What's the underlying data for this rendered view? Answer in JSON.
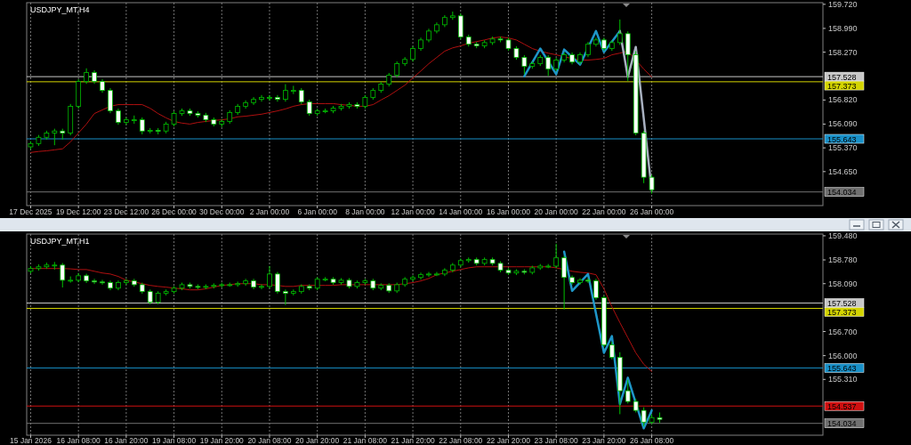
{
  "chart_data": [
    {
      "type": "candlestick",
      "title": "USDJPY_MT,H4",
      "color": "#00c000",
      "grid": "x",
      "categories": [
        "17 Dec 2025",
        null,
        null,
        null,
        null,
        null,
        "19 Dec 12:00",
        null,
        null,
        null,
        null,
        null,
        "23 Dec 12:00",
        null,
        null,
        null,
        null,
        null,
        "26 Dec 00:00",
        null,
        null,
        null,
        null,
        null,
        "30 Dec 00:00",
        null,
        null,
        null,
        null,
        null,
        "2 Jan 00:00",
        null,
        null,
        null,
        null,
        null,
        "6 Jan 00:00",
        null,
        null,
        null,
        null,
        null,
        "8 Jan 00:00",
        null,
        null,
        null,
        null,
        null,
        "12 Jan 00:00",
        null,
        null,
        null,
        null,
        null,
        "14 Jan 00:00",
        null,
        null,
        null,
        null,
        null,
        "16 Jan 00:00",
        null,
        null,
        null,
        null,
        null,
        "20 Jan 00:00",
        null,
        null,
        null,
        null,
        null,
        "22 Jan 00:00",
        null,
        null,
        null,
        null,
        null,
        "26 Jan 00:00",
        null,
        null,
        null,
        null,
        null,
        null,
        null,
        null,
        null,
        null,
        null,
        null,
        null,
        null,
        null,
        null,
        null,
        null,
        null,
        null,
        null
      ],
      "ohlc": [
        [
          155.4,
          155.57,
          155.33,
          155.5
        ],
        [
          155.5,
          155.76,
          155.43,
          155.69
        ],
        [
          155.69,
          155.89,
          155.62,
          155.82
        ],
        [
          155.82,
          155.95,
          155.45,
          155.88
        ],
        [
          155.88,
          155.95,
          155.62,
          155.82
        ],
        [
          155.82,
          156.7,
          155.75,
          156.63
        ],
        [
          156.63,
          157.45,
          156.56,
          157.38
        ],
        [
          157.38,
          157.78,
          157.31,
          157.65
        ],
        [
          157.65,
          157.72,
          157.31,
          157.38
        ],
        [
          157.38,
          157.45,
          157.04,
          157.11
        ],
        [
          157.11,
          157.18,
          156.42,
          156.49
        ],
        [
          156.49,
          156.56,
          156.07,
          156.14
        ],
        [
          156.14,
          156.29,
          156.07,
          156.22
        ],
        [
          156.22,
          156.35,
          156.1,
          156.22
        ],
        [
          156.22,
          156.29,
          155.78,
          155.88
        ],
        [
          155.88,
          155.97,
          155.81,
          155.9
        ],
        [
          155.9,
          155.97,
          155.78,
          155.88
        ],
        [
          155.88,
          156.16,
          155.81,
          156.09
        ],
        [
          156.09,
          156.48,
          156.02,
          156.41
        ],
        [
          156.41,
          156.56,
          156.34,
          156.49
        ],
        [
          156.49,
          156.56,
          156.34,
          156.41
        ],
        [
          156.41,
          156.48,
          156.29,
          156.36
        ],
        [
          156.36,
          156.43,
          156.15,
          156.22
        ],
        [
          156.22,
          156.29,
          156.02,
          156.09
        ],
        [
          156.09,
          156.24,
          156.0,
          156.17
        ],
        [
          156.17,
          156.51,
          156.1,
          156.44
        ],
        [
          156.44,
          156.7,
          156.37,
          156.63
        ],
        [
          156.63,
          156.81,
          156.56,
          156.74
        ],
        [
          156.74,
          156.91,
          156.67,
          156.84
        ],
        [
          156.84,
          156.97,
          156.77,
          156.9
        ],
        [
          156.9,
          156.97,
          156.8,
          156.9
        ],
        [
          156.9,
          156.97,
          156.77,
          156.84
        ],
        [
          156.84,
          157.3,
          156.77,
          157.11
        ],
        [
          157.11,
          157.25,
          157.0,
          157.11
        ],
        [
          157.11,
          157.18,
          156.69,
          156.76
        ],
        [
          156.76,
          156.83,
          156.34,
          156.41
        ],
        [
          156.41,
          156.56,
          156.34,
          156.49
        ],
        [
          156.49,
          156.56,
          156.42,
          156.49
        ],
        [
          156.49,
          156.64,
          156.42,
          156.57
        ],
        [
          156.57,
          156.7,
          156.5,
          156.63
        ],
        [
          156.63,
          156.75,
          156.56,
          156.68
        ],
        [
          156.68,
          156.75,
          156.56,
          156.63
        ],
        [
          156.63,
          156.97,
          156.56,
          156.9
        ],
        [
          156.9,
          157.18,
          156.83,
          157.11
        ],
        [
          157.11,
          157.37,
          157.04,
          157.3
        ],
        [
          157.3,
          157.64,
          157.23,
          157.57
        ],
        [
          157.57,
          157.99,
          157.5,
          157.92
        ],
        [
          157.92,
          158.12,
          157.85,
          158.05
        ],
        [
          158.05,
          158.45,
          157.98,
          158.38
        ],
        [
          158.38,
          158.71,
          158.31,
          158.64
        ],
        [
          158.64,
          158.98,
          158.57,
          158.91
        ],
        [
          158.91,
          159.17,
          158.84,
          159.1
        ],
        [
          159.1,
          159.39,
          159.03,
          159.32
        ],
        [
          159.32,
          159.5,
          159.25,
          159.37
        ],
        [
          159.37,
          159.44,
          158.66,
          158.73
        ],
        [
          158.73,
          158.8,
          158.44,
          158.51
        ],
        [
          158.51,
          158.58,
          158.39,
          158.46
        ],
        [
          158.46,
          158.63,
          158.39,
          158.56
        ],
        [
          158.56,
          158.74,
          158.49,
          158.67
        ],
        [
          158.67,
          158.74,
          158.57,
          158.64
        ],
        [
          158.64,
          158.71,
          158.31,
          158.38
        ],
        [
          158.38,
          158.45,
          158.04,
          158.11
        ],
        [
          158.11,
          158.18,
          157.6,
          157.84
        ],
        [
          157.84,
          157.99,
          157.77,
          157.92
        ],
        [
          157.92,
          158.18,
          157.85,
          158.11
        ],
        [
          158.11,
          158.18,
          157.55,
          157.76
        ],
        [
          157.76,
          158.1,
          157.69,
          158.03
        ],
        [
          158.03,
          158.26,
          157.96,
          158.19
        ],
        [
          158.19,
          158.26,
          157.9,
          157.97
        ],
        [
          157.97,
          158.26,
          157.9,
          158.19
        ],
        [
          158.19,
          158.58,
          158.12,
          158.51
        ],
        [
          158.51,
          158.71,
          158.44,
          158.64
        ],
        [
          158.64,
          158.71,
          158.31,
          158.38
        ],
        [
          158.38,
          158.63,
          158.31,
          158.56
        ],
        [
          158.56,
          159.26,
          158.49,
          158.83
        ],
        [
          158.83,
          158.9,
          157.4,
          158.19
        ],
        [
          158.19,
          158.3,
          155.75,
          155.82
        ],
        [
          155.82,
          155.89,
          154.3,
          154.48
        ],
        [
          154.48,
          154.55,
          153.98,
          154.1
        ],
        null,
        null,
        null,
        null,
        null,
        null,
        null,
        null,
        null,
        null,
        null,
        null,
        null,
        null,
        null,
        null,
        null,
        null,
        null,
        null,
        null
      ],
      "series": [
        {
          "type": "line",
          "color": "#b01010",
          "values": [
            155.23,
            155.26,
            155.28,
            155.31,
            155.34,
            155.55,
            155.82,
            156.09,
            156.41,
            156.52,
            156.63,
            156.68,
            156.68,
            156.68,
            156.68,
            156.57,
            156.41,
            156.28,
            156.17,
            156.12,
            156.09,
            156.14,
            156.17,
            156.2,
            156.22,
            156.25,
            156.31,
            156.33,
            156.36,
            156.39,
            156.44,
            156.49,
            156.55,
            156.63,
            156.68,
            156.71,
            156.71,
            156.71,
            156.71,
            156.68,
            156.66,
            156.63,
            156.63,
            156.68,
            156.82,
            156.95,
            157.11,
            157.27,
            157.49,
            157.7,
            157.92,
            158.11,
            158.3,
            158.4,
            158.46,
            158.54,
            158.59,
            158.64,
            158.7,
            158.73,
            158.7,
            158.64,
            158.51,
            158.38,
            158.3,
            158.24,
            158.19,
            158.13,
            158.08,
            158.03,
            158.03,
            158.05,
            158.08,
            158.19,
            158.24,
            158.3,
            null,
            157.76,
            157.52,
            null,
            null,
            null,
            null,
            null,
            null,
            null,
            null,
            null,
            null,
            null,
            null,
            null,
            null,
            null,
            null,
            null,
            null,
            null,
            null,
            null
          ]
        },
        {
          "type": "line",
          "color": "#1e96c8",
          "values": [
            null,
            null,
            null,
            null,
            null,
            null,
            null,
            null,
            null,
            null,
            null,
            null,
            null,
            null,
            null,
            null,
            null,
            null,
            null,
            null,
            null,
            null,
            null,
            null,
            null,
            null,
            null,
            null,
            null,
            null,
            null,
            null,
            null,
            null,
            null,
            null,
            null,
            null,
            null,
            null,
            null,
            null,
            null,
            null,
            null,
            null,
            null,
            null,
            null,
            null,
            null,
            null,
            null,
            null,
            null,
            null,
            null,
            null,
            null,
            null,
            null,
            null,
            157.54,
            null,
            158.38,
            null,
            157.6,
            158.35,
            null,
            157.89,
            null,
            158.91,
            158.27,
            null,
            158.91,
            null,
            null,
            null,
            null,
            null,
            null,
            null,
            null,
            null,
            null,
            null,
            null,
            null,
            null,
            null,
            null,
            null,
            null,
            null,
            null,
            null,
            null,
            null,
            null,
            null
          ]
        },
        {
          "type": "line",
          "color": "#a8b0c0",
          "values": [
            null,
            null,
            null,
            null,
            null,
            null,
            null,
            null,
            null,
            null,
            null,
            null,
            null,
            null,
            null,
            null,
            null,
            null,
            null,
            null,
            null,
            null,
            null,
            null,
            null,
            null,
            null,
            null,
            null,
            null,
            null,
            null,
            null,
            null,
            null,
            null,
            null,
            null,
            null,
            null,
            null,
            null,
            null,
            null,
            null,
            null,
            null,
            null,
            null,
            null,
            null,
            null,
            null,
            null,
            null,
            null,
            null,
            null,
            null,
            null,
            null,
            null,
            null,
            null,
            null,
            null,
            null,
            null,
            null,
            null,
            null,
            null,
            null,
            null,
            158.91,
            157.52,
            158.43,
            null,
            154.08,
            null,
            null,
            null,
            null,
            null,
            null,
            null,
            null,
            null,
            null,
            null,
            null,
            null,
            null,
            null,
            null,
            null,
            null,
            null,
            null,
            null
          ]
        }
      ],
      "ylim": [
        153.62,
        159.77
      ],
      "yticks": [
        {
          "value": 159.72,
          "label": "159.720"
        },
        {
          "value": 158.99,
          "label": "158.990"
        },
        {
          "value": 158.27,
          "label": "158.270"
        },
        {
          "value": 156.82,
          "label": "156.820"
        },
        {
          "value": 156.09,
          "label": "156.090"
        },
        {
          "value": 155.37,
          "label": "155.370"
        },
        {
          "value": 154.65,
          "label": "154.650"
        }
      ],
      "ref_lines": [
        {
          "axis": "y",
          "value": 157.528,
          "label": "157.528",
          "color": "#c8c8c8"
        },
        {
          "axis": "y",
          "value": 157.373,
          "label": "157.373",
          "color": "#d4d400"
        },
        {
          "axis": "y",
          "value": 155.643,
          "label": "155.643",
          "color": "#1890c8"
        },
        {
          "axis": "y",
          "value": 154.034,
          "label": "154.034",
          "color": "#707070"
        }
      ]
    },
    {
      "type": "candlestick",
      "title": "USDJPY_MT,H1",
      "color": "#00c000",
      "grid": "x",
      "categories": [
        "15 Jan 2026",
        null,
        null,
        null,
        null,
        null,
        "16 Jan 08:00",
        null,
        null,
        null,
        null,
        null,
        "16 Jan 20:00",
        null,
        null,
        null,
        null,
        null,
        "19 Jan 08:00",
        null,
        null,
        null,
        null,
        null,
        "19 Jan 20:00",
        null,
        null,
        null,
        null,
        null,
        "20 Jan 08:00",
        null,
        null,
        null,
        null,
        null,
        "20 Jan 20:00",
        null,
        null,
        null,
        null,
        null,
        "21 Jan 08:00",
        null,
        null,
        null,
        null,
        null,
        "21 Jan 20:00",
        null,
        null,
        null,
        null,
        null,
        "22 Jan 08:00",
        null,
        null,
        null,
        null,
        null,
        "22 Jan 20:00",
        null,
        null,
        null,
        null,
        null,
        "23 Jan 08:00",
        null,
        null,
        null,
        null,
        null,
        "23 Jan 20:00",
        null,
        null,
        null,
        null,
        null,
        "26 Jan 08:00",
        null,
        null,
        null,
        null,
        null,
        null,
        null,
        null,
        null,
        null,
        null,
        null,
        null,
        null,
        null,
        null,
        null,
        null,
        null,
        null,
        null
      ],
      "ohlc": [
        [
          158.45,
          158.6,
          158.39,
          158.53
        ],
        [
          158.53,
          158.65,
          158.47,
          158.58
        ],
        [
          158.58,
          158.7,
          158.52,
          158.63
        ],
        [
          158.63,
          158.72,
          158.5,
          158.63
        ],
        [
          158.63,
          158.69,
          157.98,
          158.19
        ],
        [
          158.19,
          158.3,
          158.12,
          158.19
        ],
        [
          158.19,
          158.4,
          158.13,
          158.32
        ],
        [
          158.32,
          158.38,
          158.11,
          158.17
        ],
        [
          158.17,
          158.23,
          158.08,
          158.14
        ],
        [
          158.14,
          158.2,
          158.06,
          158.12
        ],
        [
          158.12,
          158.18,
          157.9,
          157.96
        ],
        [
          157.96,
          158.18,
          157.9,
          158.12
        ],
        [
          158.12,
          158.23,
          158.06,
          158.17
        ],
        [
          158.17,
          158.23,
          158.0,
          158.06
        ],
        [
          158.06,
          158.12,
          157.8,
          157.86
        ],
        [
          157.86,
          157.92,
          157.49,
          157.55
        ],
        [
          157.55,
          157.87,
          157.49,
          157.81
        ],
        [
          157.81,
          157.92,
          157.75,
          157.86
        ],
        [
          157.86,
          158.02,
          157.8,
          157.96
        ],
        [
          157.96,
          158.12,
          157.9,
          158.06
        ],
        [
          158.06,
          158.12,
          157.95,
          158.01
        ],
        [
          158.01,
          158.07,
          157.93,
          157.99
        ],
        [
          157.99,
          158.07,
          157.93,
          158.01
        ],
        [
          158.01,
          158.1,
          157.95,
          158.04
        ],
        [
          158.04,
          158.12,
          157.98,
          158.06
        ],
        [
          158.06,
          158.12,
          158.0,
          158.06
        ],
        [
          158.06,
          158.15,
          158.0,
          158.09
        ],
        [
          158.09,
          158.23,
          158.03,
          158.17
        ],
        [
          158.17,
          158.23,
          157.93,
          157.99
        ],
        [
          157.99,
          158.07,
          157.93,
          158.01
        ],
        [
          158.01,
          158.6,
          157.95,
          158.37
        ],
        [
          158.37,
          158.43,
          157.8,
          157.86
        ],
        [
          157.86,
          157.92,
          157.47,
          157.81
        ],
        [
          157.81,
          157.92,
          157.75,
          157.86
        ],
        [
          157.86,
          158.07,
          157.8,
          158.01
        ],
        [
          158.01,
          158.07,
          157.9,
          157.96
        ],
        [
          157.96,
          158.28,
          157.9,
          158.22
        ],
        [
          158.22,
          158.28,
          158.16,
          158.22
        ],
        [
          158.22,
          158.28,
          158.06,
          158.12
        ],
        [
          158.12,
          158.25,
          158.06,
          158.19
        ],
        [
          158.19,
          158.25,
          157.95,
          158.01
        ],
        [
          158.01,
          158.18,
          157.95,
          158.12
        ],
        [
          158.12,
          158.23,
          158.06,
          158.17
        ],
        [
          158.17,
          158.23,
          157.9,
          157.96
        ],
        [
          157.96,
          158.1,
          157.9,
          158.04
        ],
        [
          158.04,
          158.1,
          157.82,
          157.88
        ],
        [
          157.88,
          158.12,
          157.82,
          158.06
        ],
        [
          158.06,
          158.28,
          158.0,
          158.22
        ],
        [
          158.22,
          158.33,
          158.16,
          158.27
        ],
        [
          158.27,
          158.41,
          158.21,
          158.35
        ],
        [
          158.35,
          158.43,
          158.29,
          158.37
        ],
        [
          158.37,
          158.43,
          158.31,
          158.37
        ],
        [
          158.37,
          158.54,
          158.31,
          158.48
        ],
        [
          158.48,
          158.69,
          158.42,
          158.63
        ],
        [
          158.63,
          158.82,
          158.57,
          158.76
        ],
        [
          158.76,
          158.85,
          158.7,
          158.79
        ],
        [
          158.79,
          158.85,
          158.62,
          158.68
        ],
        [
          158.68,
          158.85,
          158.62,
          158.79
        ],
        [
          158.79,
          158.85,
          158.62,
          158.68
        ],
        [
          158.68,
          158.74,
          158.42,
          158.48
        ],
        [
          158.48,
          158.54,
          158.34,
          158.4
        ],
        [
          158.4,
          158.51,
          158.34,
          158.45
        ],
        [
          158.45,
          158.51,
          158.36,
          158.42
        ],
        [
          158.42,
          158.61,
          158.36,
          158.55
        ],
        [
          158.55,
          158.66,
          158.49,
          158.6
        ],
        [
          158.6,
          158.66,
          158.54,
          158.6
        ],
        [
          158.6,
          159.25,
          158.54,
          158.84
        ],
        [
          158.84,
          158.9,
          157.34,
          158.27
        ],
        [
          158.27,
          158.33,
          158.06,
          158.12
        ],
        [
          158.12,
          158.25,
          158.06,
          158.19
        ],
        [
          158.19,
          158.25,
          158.11,
          158.17
        ],
        [
          158.17,
          158.23,
          157.62,
          157.68
        ],
        [
          157.68,
          157.74,
          156.25,
          156.31
        ],
        [
          156.31,
          156.4,
          155.89,
          155.95
        ],
        [
          155.95,
          156.1,
          154.3,
          154.98
        ],
        [
          154.98,
          155.3,
          154.61,
          154.67
        ],
        [
          154.67,
          154.75,
          154.35,
          154.41
        ],
        [
          154.41,
          154.5,
          153.95,
          154.07
        ],
        [
          154.07,
          154.3,
          154.01,
          154.2
        ],
        [
          154.2,
          154.35,
          154.05,
          154.15
        ],
        null,
        null,
        null,
        null,
        null,
        null,
        null,
        null,
        null,
        null,
        null,
        null,
        null,
        null,
        null,
        null,
        null,
        null,
        null,
        null
      ],
      "series": [
        {
          "type": "line",
          "color": "#b01010",
          "values": [
            158.53,
            158.53,
            158.53,
            158.53,
            158.53,
            158.52,
            158.5,
            158.5,
            158.45,
            158.4,
            158.37,
            158.3,
            158.19,
            158.14,
            158.09,
            158.04,
            158.01,
            157.99,
            157.96,
            157.94,
            157.91,
            157.91,
            157.94,
            157.99,
            158.04,
            158.06,
            158.09,
            158.09,
            158.09,
            158.06,
            158.06,
            158.04,
            158.01,
            158.01,
            158.04,
            158.04,
            158.04,
            158.04,
            158.04,
            158.06,
            158.06,
            158.06,
            158.06,
            158.06,
            158.06,
            158.06,
            158.06,
            158.09,
            158.12,
            158.17,
            158.24,
            158.35,
            158.4,
            158.45,
            158.5,
            158.55,
            158.58,
            158.58,
            158.58,
            158.58,
            158.58,
            158.58,
            158.58,
            158.58,
            158.58,
            158.58,
            158.55,
            158.5,
            158.45,
            158.42,
            158.4,
            158.35,
            157.94,
            157.42,
            156.96,
            156.52,
            156.08,
            155.75,
            155.54,
            null,
            null,
            null,
            null,
            null,
            null,
            null,
            null,
            null,
            null,
            null,
            null,
            null,
            null,
            null,
            null,
            null,
            null,
            null,
            null,
            null
          ]
        },
        {
          "type": "line",
          "color": "#1e96c8",
          "values": [
            null,
            null,
            null,
            null,
            null,
            null,
            null,
            null,
            null,
            null,
            null,
            null,
            null,
            null,
            null,
            null,
            null,
            null,
            null,
            null,
            null,
            null,
            null,
            null,
            null,
            null,
            null,
            null,
            null,
            null,
            null,
            null,
            null,
            null,
            null,
            null,
            null,
            null,
            null,
            null,
            null,
            null,
            null,
            null,
            null,
            null,
            null,
            null,
            null,
            null,
            null,
            null,
            null,
            null,
            null,
            null,
            null,
            null,
            null,
            null,
            null,
            null,
            null,
            null,
            null,
            null,
            null,
            159.02,
            157.88,
            null,
            158.37,
            null,
            156.08,
            156.57,
            154.59,
            155.36,
            null,
            153.89,
            154.41,
            null,
            null,
            null,
            null,
            null,
            null,
            null,
            null,
            null,
            null,
            null,
            null,
            null,
            null,
            null,
            null,
            null,
            null,
            null,
            null,
            null
          ]
        }
      ],
      "ylim": [
        153.69,
        159.53
      ],
      "yticks": [
        {
          "value": 159.48,
          "label": "159.480"
        },
        {
          "value": 158.78,
          "label": "158.780"
        },
        {
          "value": 158.09,
          "label": "158.090"
        },
        {
          "value": 156.7,
          "label": "156.700"
        },
        {
          "value": 156.0,
          "label": "156.000"
        },
        {
          "value": 155.31,
          "label": "155.310"
        }
      ],
      "ref_lines": [
        {
          "axis": "y",
          "value": 157.528,
          "label": "157.528",
          "color": "#c8c8c8"
        },
        {
          "axis": "y",
          "value": 157.373,
          "label": "157.373",
          "color": "#d4d400"
        },
        {
          "axis": "y",
          "value": 155.643,
          "label": "155.643",
          "color": "#1890c8"
        },
        {
          "axis": "y",
          "value": 154.537,
          "label": "154.537",
          "color": "#d01010"
        },
        {
          "axis": "y",
          "value": 154.034,
          "label": "154.034",
          "color": "#707070"
        }
      ]
    }
  ]
}
